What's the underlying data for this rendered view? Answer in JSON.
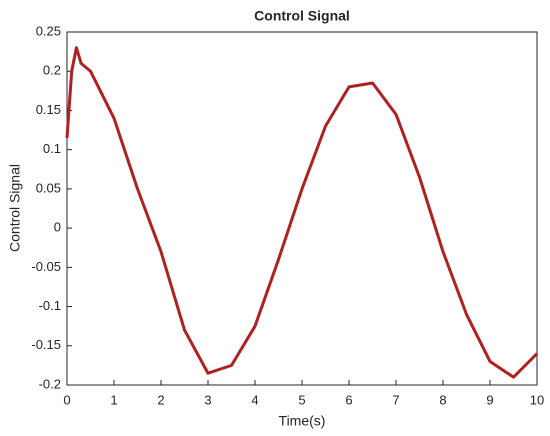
{
  "chart_data": {
    "type": "line",
    "title": "Control Signal",
    "x_label": "Time(s)",
    "y_label": "Control Signal",
    "x": [
      0,
      0.1,
      0.2,
      0.3,
      0.5,
      1,
      1.5,
      2,
      2.5,
      3,
      3.5,
      4,
      4.5,
      5,
      5.5,
      6,
      6.5,
      7,
      7.5,
      8,
      8.5,
      9,
      9.5,
      10
    ],
    "series": [
      {
        "color": "#b02020",
        "values": [
          0.115,
          0.2,
          0.23,
          0.21,
          0.2,
          0.14,
          0.05,
          -0.03,
          -0.13,
          -0.185,
          -0.175,
          -0.125,
          -0.04,
          0.05,
          0.13,
          0.18,
          0.185,
          0.145,
          0.065,
          -0.03,
          -0.11,
          -0.17,
          -0.19,
          -0.16
        ]
      }
    ],
    "xlim": [
      0,
      10
    ],
    "ylim": [
      -0.2,
      0.25
    ],
    "xticks": [
      0,
      1,
      2,
      3,
      4,
      5,
      6,
      7,
      8,
      9,
      10
    ],
    "yticks": [
      -0.2,
      -0.15,
      -0.1,
      -0.05,
      0,
      0.05,
      0.1,
      0.15,
      0.2,
      0.25
    ]
  }
}
